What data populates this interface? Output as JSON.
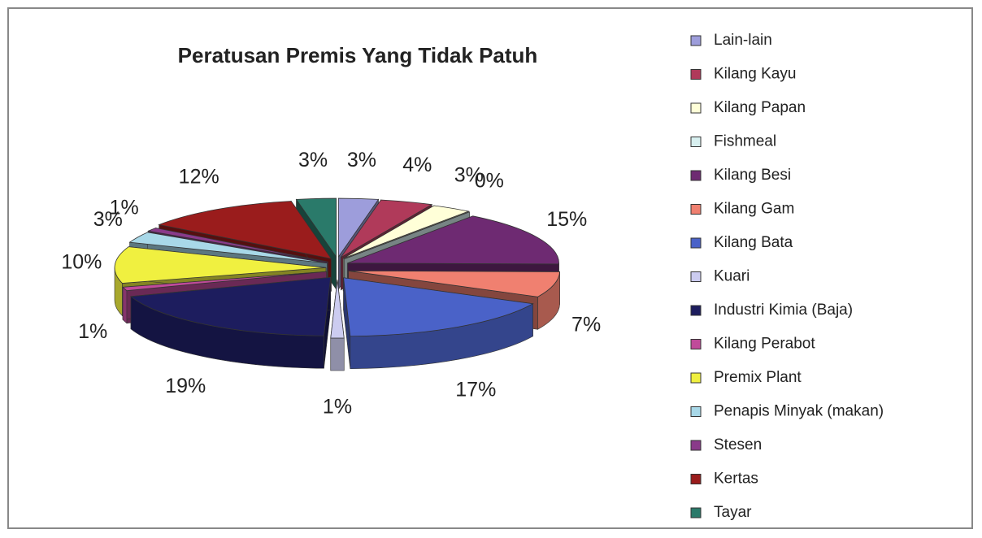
{
  "chart_data": {
    "type": "pie",
    "title": "Peratusan  Premis Yang Tidak Patuh",
    "categories": [
      "Lain-lain",
      "Kilang Kayu",
      "Kilang Papan",
      "Fishmeal",
      "Kilang Besi",
      "Kilang Gam",
      "Kilang Bata",
      "Kuari",
      "Industri Kimia (Baja)",
      "Kilang Perabot",
      "Premix Plant",
      "Penapis Minyak (makan)",
      "Stesen",
      "Kertas",
      "Tayar"
    ],
    "values": [
      3,
      4,
      3,
      0,
      15,
      7,
      17,
      1,
      19,
      1,
      10,
      3,
      1,
      12,
      3
    ],
    "value_labels": [
      "3%",
      "4%",
      "3%",
      "0%",
      "15%",
      "7%",
      "17%",
      "1%",
      "19%",
      "1%",
      "10%",
      "3%",
      "1%",
      "12%",
      "3%"
    ],
    "colors": [
      "#9d9ddb",
      "#b03a5a",
      "#ffffd8",
      "#d8f0f0",
      "#6e2a72",
      "#f08070",
      "#4a62c8",
      "#ccccf0",
      "#1d1d5e",
      "#c04a9a",
      "#f0f040",
      "#a8d8e8",
      "#8a3a8a",
      "#9a1c1c",
      "#2a7a6a"
    ],
    "legend": "right"
  }
}
